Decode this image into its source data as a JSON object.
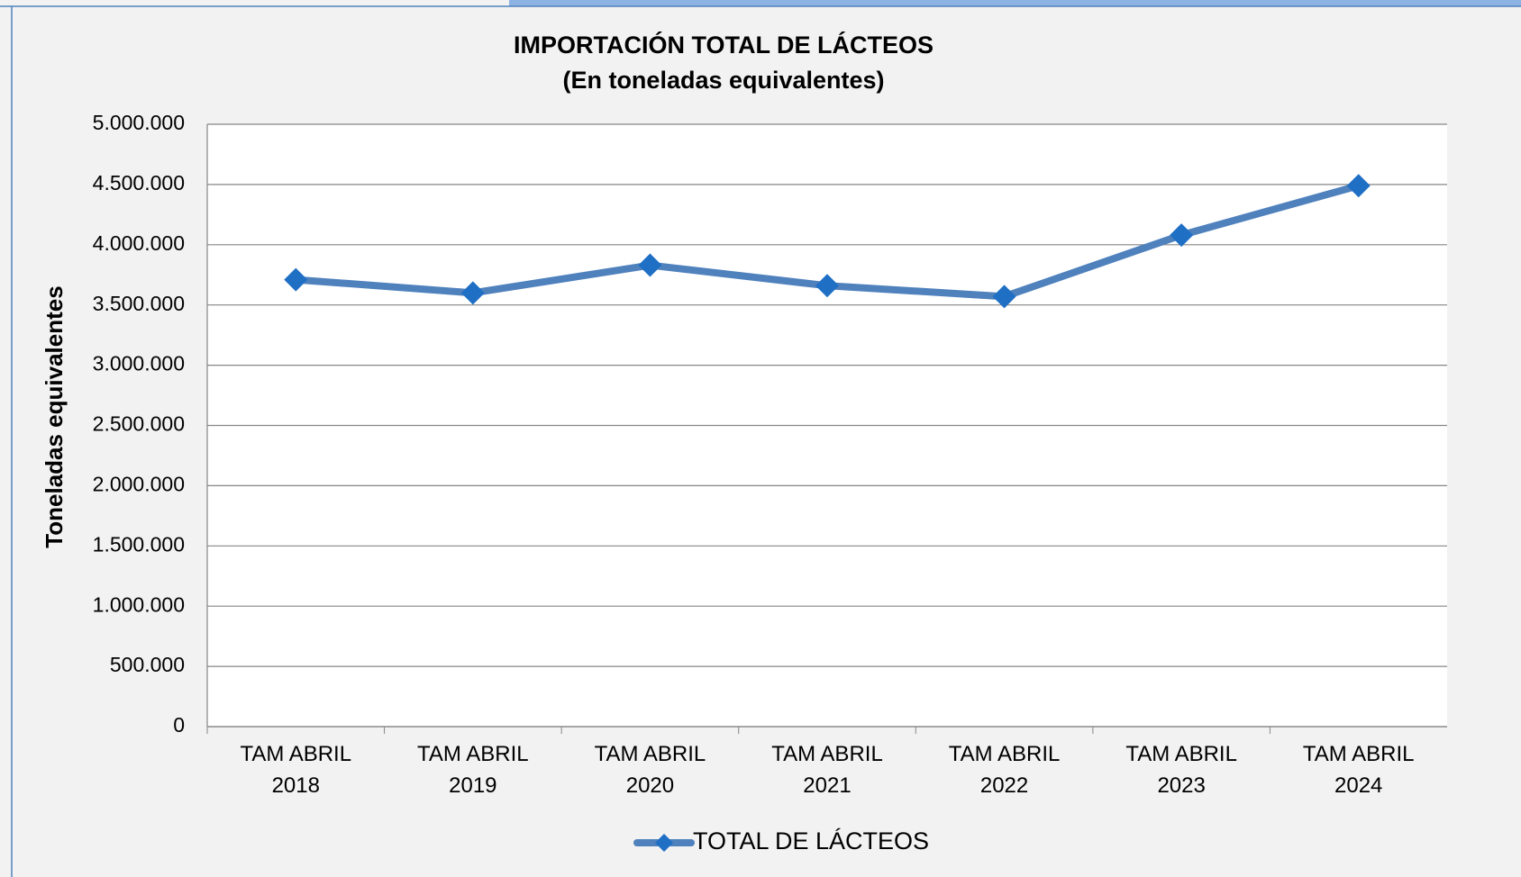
{
  "chart_data": {
    "type": "line",
    "title": "IMPORTACIÓN TOTAL DE LÁCTEOS",
    "subtitle": "(En toneladas equivalentes)",
    "y_label": "Toneladas equivalentes",
    "categories": [
      "TAM ABRIL 2018",
      "TAM ABRIL 2019",
      "TAM ABRIL 2020",
      "TAM ABRIL 2021",
      "TAM ABRIL 2022",
      "TAM ABRIL 2023",
      "TAM ABRIL 2024"
    ],
    "series": [
      {
        "name": "TOTAL DE LÁCTEOS",
        "color": "#4f81bd",
        "marker_color": "#1f6fc5",
        "values": [
          3710000,
          3600000,
          3830000,
          3660000,
          3570000,
          4080000,
          4490000
        ]
      }
    ],
    "ylim": [
      0,
      5000000
    ],
    "yticks": [
      0,
      {
        "value": 500000,
        "label": "500.000"
      },
      {
        "value": 1000000,
        "label": "1.000.000"
      },
      {
        "value": 1500000,
        "label": "1.500.000"
      },
      {
        "value": 2000000,
        "label": "2.000.000"
      },
      {
        "value": 2500000,
        "label": "2.500.000"
      },
      {
        "value": 3000000,
        "label": "3.000.000"
      },
      {
        "value": 3500000,
        "label": "3.500.000"
      },
      {
        "value": 4000000,
        "label": "4.000.000"
      },
      {
        "value": 4500000,
        "label": "4.500.000"
      },
      {
        "value": 5000000,
        "label": "5.000.000"
      }
    ],
    "grid": true,
    "legend": "bottom"
  }
}
